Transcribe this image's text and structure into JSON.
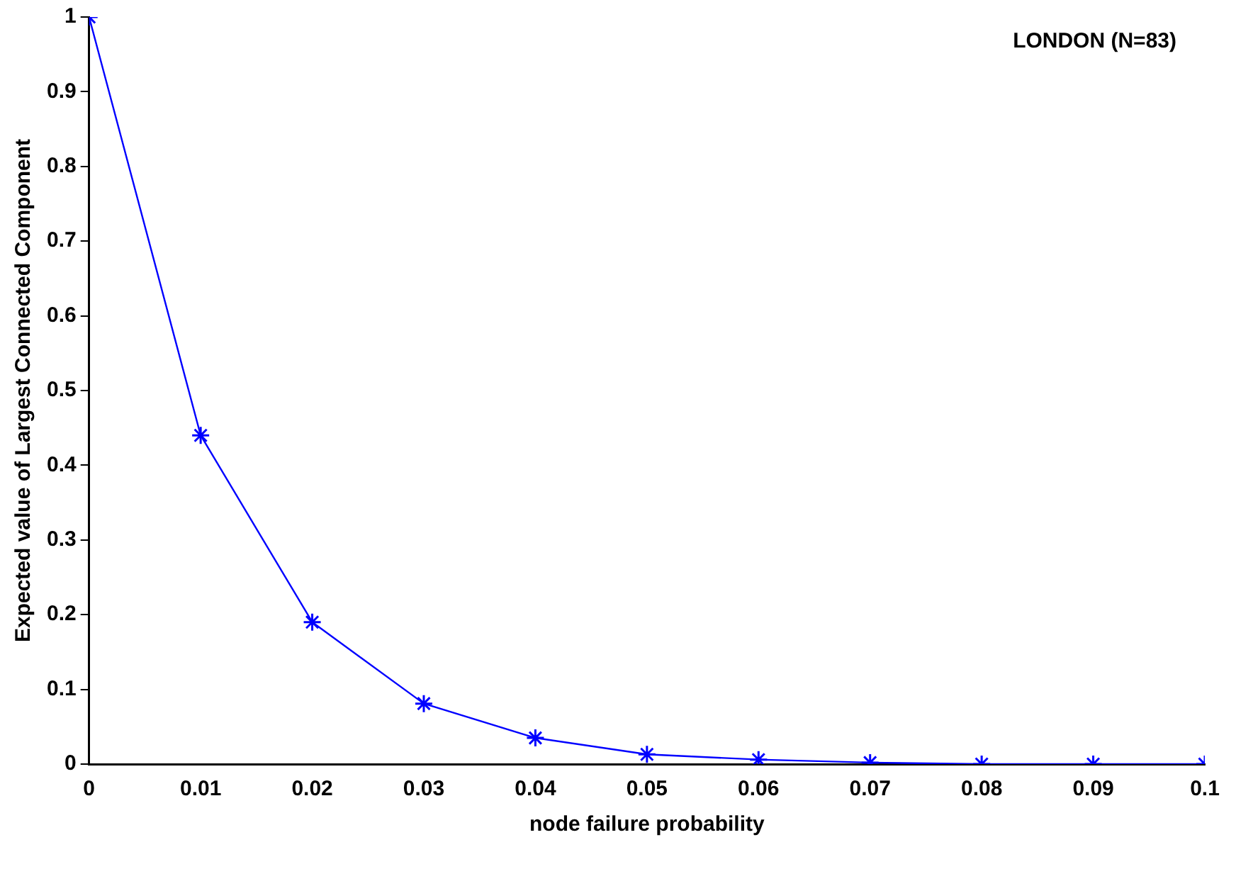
{
  "chart_data": {
    "type": "line",
    "xlabel": "node failure probability",
    "ylabel": "Expected value of Largest Connected Component",
    "annotations": [
      "LONDON (N=83)"
    ],
    "x": [
      0,
      0.01,
      0.02,
      0.03,
      0.04,
      0.05,
      0.06,
      0.07,
      0.08,
      0.09,
      0.1
    ],
    "series": [
      {
        "color": "#0000ff",
        "values": [
          1,
          0.44,
          0.19,
          0.081,
          0.035,
          0.013,
          0.006,
          0.002,
          0,
          0,
          0
        ]
      }
    ],
    "xlim": [
      0,
      0.1
    ],
    "xticks": [
      0,
      0.01,
      0.02,
      0.03,
      0.04,
      0.05,
      0.06,
      0.07,
      0.08,
      0.09,
      0.1
    ],
    "ylim": [
      0,
      1
    ],
    "yticks": [
      0,
      0.1,
      0.2,
      0.3,
      0.4,
      0.5,
      0.6,
      0.7,
      0.8,
      0.9,
      1
    ],
    "grid": false,
    "legend": false,
    "marker": "cross",
    "line_style": "solid"
  }
}
